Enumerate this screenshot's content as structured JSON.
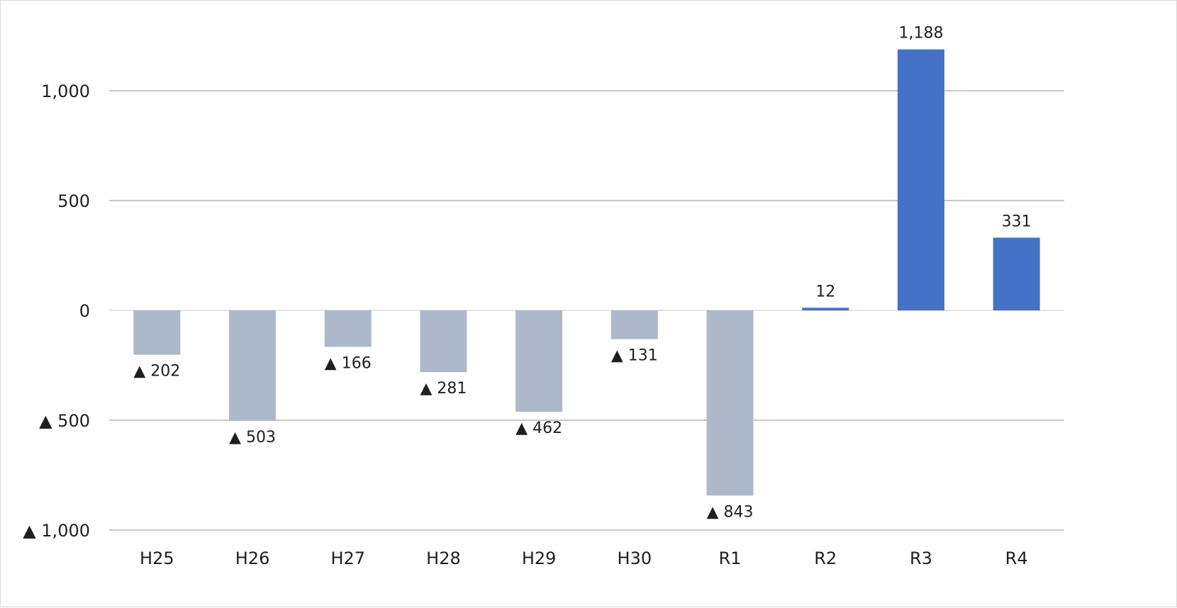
{
  "chart_data": {
    "type": "bar",
    "categories": [
      "H25",
      "H26",
      "H27",
      "H28",
      "H29",
      "H30",
      "R1",
      "R2",
      "R3",
      "R4"
    ],
    "values": [
      -202,
      -503,
      -166,
      -281,
      -462,
      -131,
      -843,
      12,
      1188,
      331
    ],
    "data_labels": [
      "▲ 202",
      "▲ 503",
      "▲ 166",
      "▲ 281",
      "▲ 462",
      "▲ 131",
      "▲ 843",
      "12",
      "1,188",
      "331"
    ],
    "ylim": [
      -1000,
      1000
    ],
    "y_ticks": [
      {
        "value": 1000,
        "label": "1,000"
      },
      {
        "value": 500,
        "label": "500"
      },
      {
        "value": 0,
        "label": "0"
      },
      {
        "value": -500,
        "label": "▲ 500"
      },
      {
        "value": -1000,
        "label": "▲ 1,000"
      }
    ],
    "grid": true,
    "legend": "none",
    "colors": {
      "negative": "#adb9ca",
      "positive": "#4472c4",
      "grid": "#a6a6a6"
    }
  }
}
